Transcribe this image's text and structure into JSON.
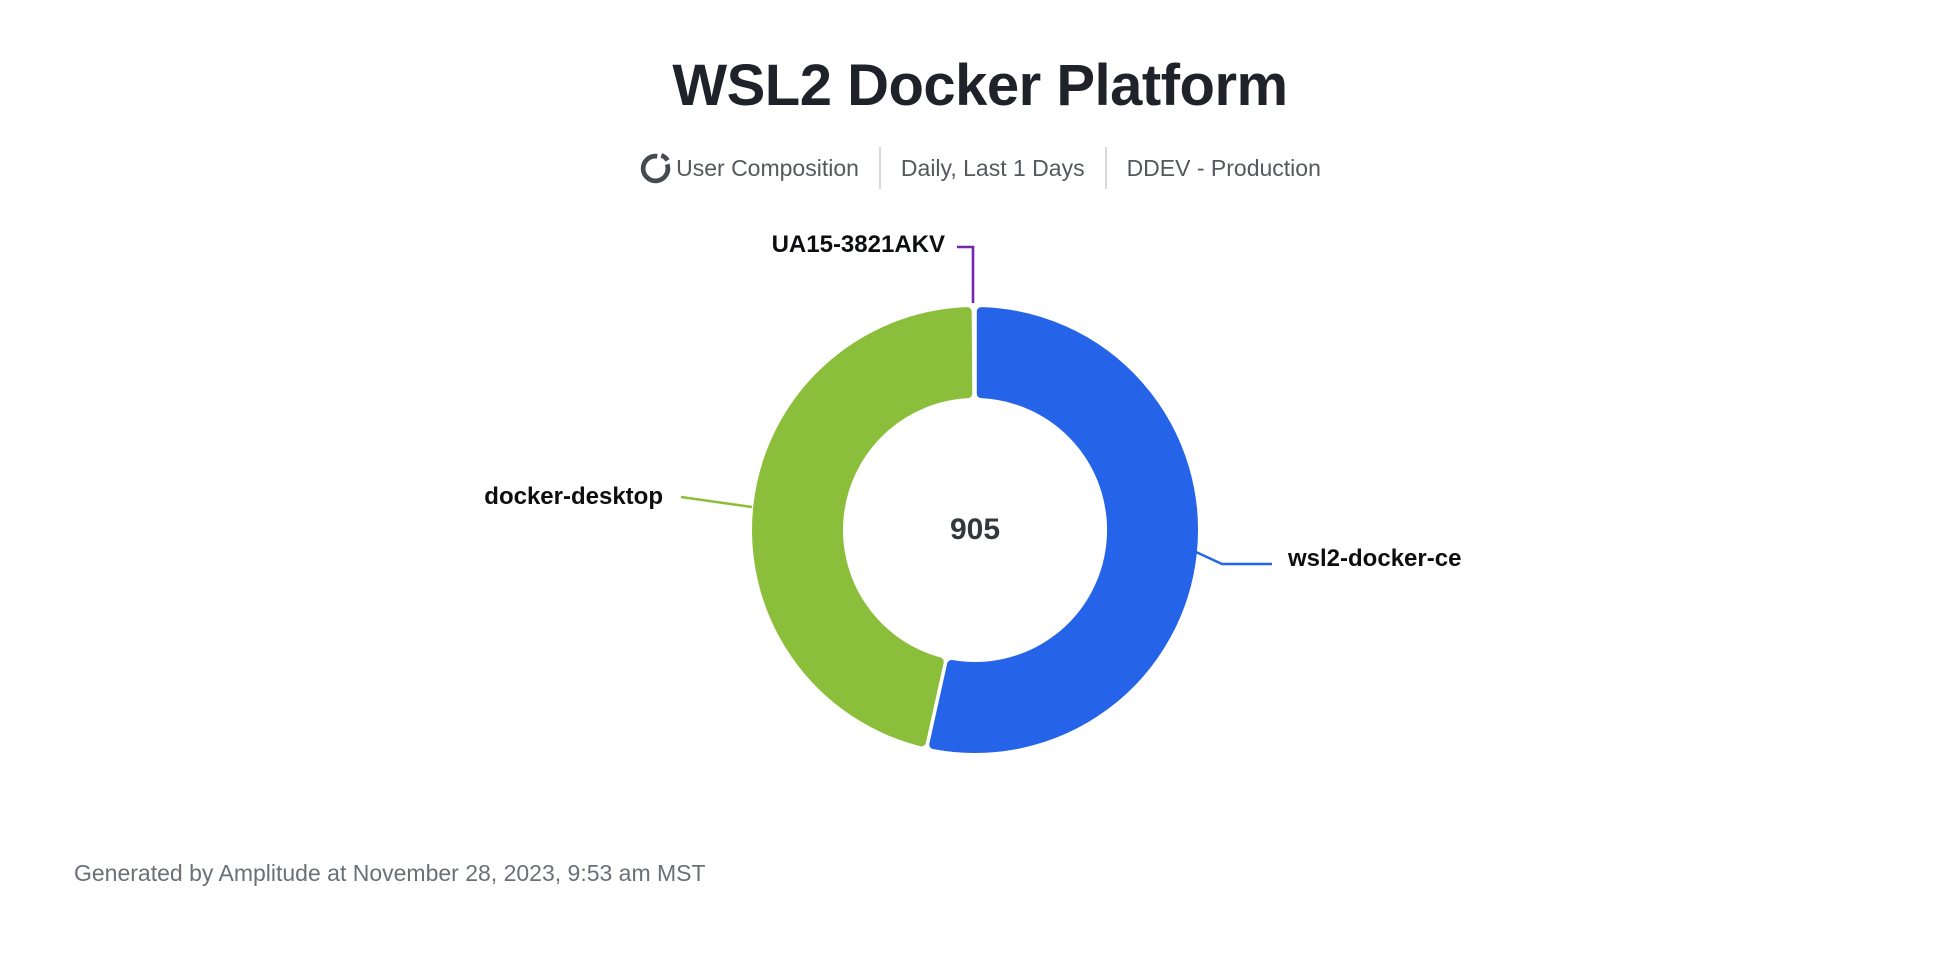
{
  "title": "WSL2 Docker Platform",
  "subtitle": {
    "metric_icon": "donut-chart-icon",
    "metric": "User Composition",
    "interval": "Daily, Last 1 Days",
    "project": "DDEV - Production"
  },
  "chart_data": {
    "type": "pie",
    "donut": true,
    "title": "WSL2 Docker Platform",
    "center_total": "905",
    "total": 905,
    "start_angle_deg": 0,
    "direction": "clockwise",
    "legend_position": "callout-labels",
    "series": [
      {
        "name": "wsl2-docker-ce",
        "value": 484,
        "color": "#2563e9"
      },
      {
        "name": "docker-desktop",
        "value": 420,
        "color": "#8bbe3a"
      },
      {
        "name": "UA15-3821AKV",
        "value": 1,
        "color": "#7527ad"
      }
    ]
  },
  "colors": {
    "title_text": "#1f2329",
    "subtitle_text": "#55585d",
    "divider": "#d9d9dc",
    "label_text": "#0d0e10",
    "footer_text": "#6b7076",
    "background": "#ffffff"
  },
  "footer": {
    "attribution": "Generated by Amplitude at November 28, 2023, 9:53 am MST"
  }
}
